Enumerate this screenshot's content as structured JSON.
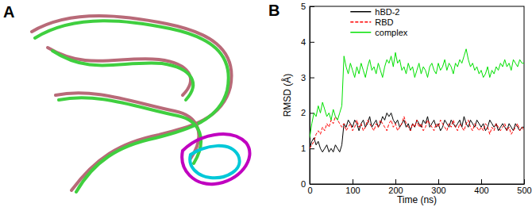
{
  "figure": {
    "panels": [
      {
        "label": "A"
      }
    ]
  },
  "chart_data": {
    "type": "line",
    "panel_label": "B",
    "x_label": "Time (ns)",
    "y_label": "RMSD (Å)",
    "xlim": [
      0,
      500
    ],
    "ylim": [
      0,
      5
    ],
    "xticks": [
      0,
      100,
      200,
      300,
      400,
      500
    ],
    "yticks": [
      0,
      1,
      2,
      3,
      4,
      5
    ],
    "grid": false,
    "legend": "upper left",
    "x": [
      0,
      5,
      10,
      15,
      20,
      25,
      30,
      35,
      40,
      45,
      50,
      55,
      60,
      65,
      70,
      75,
      80,
      85,
      90,
      95,
      100,
      105,
      110,
      115,
      120,
      125,
      130,
      135,
      140,
      145,
      150,
      155,
      160,
      165,
      170,
      175,
      180,
      185,
      190,
      195,
      200,
      205,
      210,
      215,
      220,
      225,
      230,
      235,
      240,
      245,
      250,
      255,
      260,
      265,
      270,
      275,
      280,
      285,
      290,
      295,
      300,
      305,
      310,
      315,
      320,
      325,
      330,
      335,
      340,
      345,
      350,
      355,
      360,
      365,
      370,
      375,
      380,
      385,
      390,
      395,
      400,
      405,
      410,
      415,
      420,
      425,
      430,
      435,
      440,
      445,
      450,
      455,
      460,
      465,
      470,
      475,
      480,
      485,
      490,
      495,
      500
    ],
    "series": [
      {
        "name": "hBD-2",
        "color": "#000000",
        "values": [
          1.0,
          1.2,
          1.3,
          1.1,
          1.2,
          1.0,
          0.9,
          1.0,
          1.1,
          0.9,
          1.0,
          0.9,
          1.1,
          1.0,
          0.9,
          1.1,
          1.7,
          1.6,
          1.8,
          1.7,
          1.6,
          1.8,
          1.7,
          1.5,
          1.7,
          1.8,
          1.6,
          1.7,
          1.9,
          1.6,
          1.7,
          1.8,
          1.6,
          1.7,
          1.9,
          1.8,
          2.0,
          1.9,
          2.0,
          1.8,
          1.7,
          1.8,
          1.6,
          1.7,
          1.8,
          1.6,
          1.7,
          1.5,
          1.7,
          1.6,
          1.8,
          1.7,
          1.6,
          1.8,
          1.7,
          1.9,
          1.6,
          1.7,
          1.8,
          1.6,
          1.7,
          1.5,
          1.6,
          1.8,
          1.7,
          1.6,
          1.8,
          1.7,
          1.6,
          1.7,
          1.8,
          1.6,
          1.9,
          1.7,
          1.6,
          1.8,
          1.7,
          1.6,
          1.8,
          1.7,
          1.6,
          1.7,
          1.5,
          1.6,
          1.8,
          1.7,
          1.6,
          1.7,
          1.5,
          1.6,
          1.7,
          1.6,
          1.5,
          1.7,
          1.6,
          1.5,
          1.7,
          1.6,
          1.5,
          1.6,
          1.6
        ]
      },
      {
        "name": "RBD",
        "color": "#ff0000",
        "line_style": "dashed",
        "values": [
          1.0,
          1.1,
          1.2,
          1.4,
          1.5,
          1.4,
          1.6,
          1.5,
          1.7,
          1.6,
          1.8,
          1.7,
          1.9,
          1.8,
          1.7,
          1.6,
          1.7,
          1.5,
          1.6,
          1.7,
          1.5,
          1.6,
          1.8,
          1.6,
          1.7,
          1.5,
          1.6,
          1.8,
          1.7,
          1.6,
          1.5,
          1.7,
          1.6,
          1.8,
          1.7,
          1.6,
          1.5,
          1.7,
          1.8,
          1.6,
          1.7,
          1.5,
          1.6,
          1.7,
          1.9,
          1.7,
          1.6,
          1.5,
          1.7,
          1.6,
          1.8,
          1.6,
          1.7,
          1.5,
          1.6,
          1.8,
          1.7,
          1.6,
          1.5,
          1.7,
          1.6,
          1.8,
          1.7,
          1.6,
          1.5,
          1.7,
          1.6,
          1.8,
          1.6,
          1.5,
          1.7,
          1.6,
          1.5,
          1.7,
          1.8,
          1.6,
          1.5,
          1.7,
          1.6,
          1.5,
          1.6,
          1.5,
          1.7,
          1.6,
          1.4,
          1.6,
          1.5,
          1.7,
          1.6,
          1.5,
          1.6,
          1.7,
          1.5,
          1.6,
          1.4,
          1.5,
          1.6,
          1.7,
          1.5,
          1.6,
          1.5
        ]
      },
      {
        "name": "complex",
        "color": "#00e000",
        "values": [
          1.3,
          1.7,
          2.0,
          1.9,
          2.2,
          2.0,
          2.3,
          2.1,
          1.9,
          2.0,
          1.8,
          2.1,
          1.9,
          1.8,
          2.0,
          2.2,
          3.6,
          3.3,
          3.1,
          3.4,
          3.2,
          3.0,
          3.3,
          3.1,
          3.4,
          3.2,
          3.0,
          3.3,
          3.5,
          3.2,
          3.3,
          3.1,
          3.4,
          3.2,
          3.0,
          3.3,
          3.5,
          3.4,
          3.6,
          3.3,
          3.7,
          3.4,
          3.5,
          3.2,
          3.3,
          3.1,
          3.4,
          3.2,
          3.3,
          3.0,
          3.2,
          3.4,
          3.1,
          3.3,
          3.2,
          3.0,
          3.3,
          3.4,
          3.2,
          3.1,
          3.4,
          3.2,
          3.3,
          3.5,
          3.2,
          3.4,
          3.3,
          3.1,
          3.4,
          3.3,
          3.5,
          3.4,
          3.6,
          3.8,
          3.5,
          3.3,
          3.4,
          3.2,
          3.3,
          3.1,
          3.2,
          3.0,
          3.1,
          3.3,
          3.0,
          3.2,
          3.1,
          3.3,
          3.2,
          3.4,
          3.3,
          3.5,
          3.3,
          3.4,
          3.2,
          3.5,
          3.4,
          3.3,
          3.5,
          3.4,
          3.4
        ]
      }
    ]
  }
}
